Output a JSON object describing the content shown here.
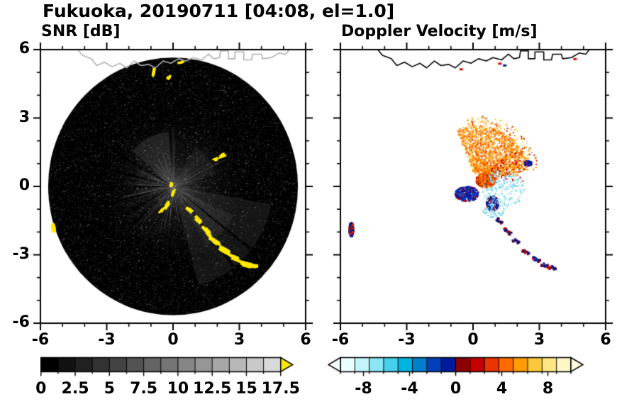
{
  "title": "Fukuoka, 20190711 [04:08, el=1.0]",
  "panels": {
    "snr": {
      "subtitle": "SNR [dB]",
      "x_tick_labels": [
        "-6",
        "-3",
        "0",
        "3",
        "6"
      ],
      "y_tick_labels": [
        "6",
        "3",
        "0",
        "-3",
        "-6"
      ],
      "x_tick_values": [
        -6,
        -3,
        0,
        3,
        6
      ],
      "y_tick_values": [
        6,
        3,
        0,
        -3,
        -6
      ]
    },
    "velocity": {
      "subtitle": "Doppler Velocity [m/s]",
      "x_tick_labels": [
        "-6",
        "-3",
        "0",
        "3",
        "6"
      ],
      "x_tick_values": [
        -6,
        -3,
        0,
        3,
        6
      ]
    }
  },
  "colorbars": {
    "snr": {
      "labels": [
        "0",
        "2.5",
        "5",
        "7.5",
        "10",
        "12.5",
        "15",
        "17.5"
      ],
      "label_values": [
        0,
        2.5,
        5,
        7.5,
        10,
        12.5,
        15,
        17.5
      ],
      "range": [
        0,
        17.5
      ],
      "n_segments": 14,
      "start_color": "#000000",
      "end_color": "#d9d9d9",
      "overflow_arrow_color": "#ffe800"
    },
    "velocity": {
      "labels": [
        "-8",
        "-4",
        "0",
        "4",
        "8"
      ],
      "label_values": [
        -8,
        -4,
        0,
        4,
        8
      ],
      "range": [
        -10,
        10
      ],
      "segment_colors": [
        "#eaffff",
        "#c2f4fa",
        "#8ae6f4",
        "#46d0ec",
        "#00b4e0",
        "#0080cc",
        "#0040bb",
        "#001a9e",
        "#8b0000",
        "#c40000",
        "#e93400",
        "#ff6a00",
        "#ff9c00",
        "#ffc83c",
        "#ffe680",
        "#fff6c8"
      ],
      "underflow_arrow_color": "#f4ffff",
      "overflow_arrow_color": "#fffbe0"
    }
  },
  "chart_data": {
    "type": "heatmap",
    "description": "Dual-panel radar PPI scan over Fukuoka, 2019-07-11 04:08, elevation 1.0 deg. Left panel: SNR [dB] 0-17.5 grayscale with yellow clutter arc. Right panel: Doppler velocity [m/s] -10..10, orange outflow fan and navy/red clutter arc. Axes -6..6 km.",
    "x_range": [
      -6,
      6
    ],
    "y_range": [
      -6,
      6
    ],
    "radar_center": [
      0,
      0
    ],
    "radar_radius": 5.65,
    "coastline": [
      [
        -4.35,
        6.05
      ],
      [
        -4.1,
        5.75
      ],
      [
        -3.7,
        5.6
      ],
      [
        -3.45,
        5.3
      ],
      [
        -3.1,
        5.45
      ],
      [
        -2.75,
        5.25
      ],
      [
        -2.4,
        5.4
      ],
      [
        -2.1,
        5.2
      ],
      [
        -1.75,
        5.5
      ],
      [
        -1.45,
        5.3
      ],
      [
        -1.1,
        5.35
      ],
      [
        -0.8,
        5.2
      ],
      [
        -0.45,
        5.5
      ],
      [
        -0.1,
        5.4
      ],
      [
        0.25,
        5.6
      ],
      [
        0.6,
        5.5
      ],
      [
        0.9,
        5.65
      ],
      [
        1.3,
        5.55
      ],
      [
        1.6,
        5.8
      ],
      [
        1.85,
        5.6
      ],
      [
        2.1,
        5.65
      ],
      [
        2.15,
        5.95
      ],
      [
        2.5,
        5.95
      ],
      [
        2.5,
        5.6
      ],
      [
        2.8,
        5.6
      ],
      [
        2.8,
        5.9
      ],
      [
        3.2,
        5.9
      ],
      [
        3.2,
        5.55
      ],
      [
        3.55,
        5.55
      ],
      [
        3.6,
        5.8
      ],
      [
        4.0,
        5.8
      ],
      [
        4.05,
        5.6
      ],
      [
        4.45,
        5.65
      ],
      [
        4.8,
        5.85
      ],
      [
        5.1,
        5.8
      ],
      [
        5.3,
        6.05
      ]
    ],
    "snr_panel": {
      "background_color": "#000000",
      "coastline_color": "#b0b0b0",
      "clutter_color": "#ffeb00",
      "haze_sectors": [
        [
          -75,
          -10,
          0.4,
          4.5,
          0.16
        ],
        [
          -60,
          -25,
          0.3,
          3.0,
          0.14
        ],
        [
          95,
          140,
          0.3,
          2.4,
          0.22
        ],
        [
          15,
          60,
          0.3,
          2.0,
          0.12
        ],
        [
          150,
          200,
          0.3,
          1.6,
          0.12
        ]
      ],
      "shadow_wedges": [
        [
          150,
          4
        ],
        [
          166,
          3
        ],
        [
          181,
          5
        ],
        [
          195,
          3
        ],
        [
          209,
          4
        ],
        [
          222,
          3
        ],
        [
          -38,
          2
        ],
        [
          -52,
          2
        ]
      ],
      "clutter_blobs": [
        [
          -0.07,
          0.12,
          0.22,
          0.1,
          75
        ],
        [
          0.02,
          -0.28,
          0.28,
          0.12,
          65
        ],
        [
          -0.28,
          -0.78,
          0.34,
          0.14,
          55
        ],
        [
          -0.5,
          -1.05,
          0.26,
          0.11,
          50
        ],
        [
          0.75,
          -1.02,
          0.3,
          0.13,
          -40
        ],
        [
          1.1,
          -1.45,
          0.36,
          0.15,
          -42
        ],
        [
          1.5,
          -1.9,
          0.4,
          0.16,
          -45
        ],
        [
          1.62,
          -2.12,
          0.3,
          0.12,
          -40
        ],
        [
          1.95,
          -2.42,
          0.46,
          0.18,
          -33
        ],
        [
          2.4,
          -2.85,
          0.5,
          0.2,
          -28
        ],
        [
          2.85,
          -3.18,
          0.5,
          0.2,
          -22
        ],
        [
          3.25,
          -3.42,
          0.46,
          0.18,
          -15
        ],
        [
          3.58,
          -3.52,
          0.34,
          0.15,
          -8
        ],
        [
          2.2,
          1.32,
          0.3,
          0.14,
          20
        ],
        [
          1.92,
          1.18,
          0.2,
          0.1,
          20
        ],
        [
          -0.9,
          5.0,
          0.3,
          0.12,
          80
        ],
        [
          -0.2,
          4.78,
          0.2,
          0.1,
          70
        ],
        [
          0.35,
          5.45,
          0.26,
          0.1,
          5
        ],
        [
          -5.45,
          -1.85,
          0.55,
          0.16,
          95
        ]
      ]
    },
    "velocity_panel": {
      "coastline_color": "#000000",
      "clusters": [
        {
          "name": "outflow-fan",
          "type": "fan",
          "cx": 0.15,
          "cy": 0.25,
          "a0": 12,
          "a1": 112,
          "r0": 0.35,
          "r1": 2.45,
          "pow": 0.75,
          "count": 1500,
          "size": 2,
          "colors": [
            "#ff9500",
            "#ff7000",
            "#ffb820",
            "#f04800",
            "#ffd45a",
            "#ff9500",
            "#e86000"
          ]
        },
        {
          "name": "fan-outer-specks",
          "type": "fan",
          "cx": 0.15,
          "cy": 0.25,
          "a0": 10,
          "a1": 100,
          "r0": 2.3,
          "r1": 2.9,
          "pow": 1,
          "count": 140,
          "size": 2,
          "colors": [
            "#ffc040",
            "#ff9500",
            "#cc2200",
            "#ffe080"
          ]
        },
        {
          "name": "fan-red-specks",
          "type": "fan",
          "cx": 0.15,
          "cy": 0.25,
          "a0": 0,
          "a1": 40,
          "r0": 0.8,
          "r1": 2.2,
          "pow": 1,
          "count": 80,
          "size": 2,
          "colors": [
            "#cc1100",
            "#a00000",
            "#ff5500"
          ]
        },
        {
          "name": "core-orange-knot",
          "type": "ellipse",
          "cx": 0.55,
          "cy": 0.3,
          "rx": 0.45,
          "ry": 0.33,
          "count": 600,
          "size": 2,
          "colors": [
            "#ff7300",
            "#e03000",
            "#b01800",
            "#ff9500",
            "#ff5500"
          ]
        },
        {
          "name": "blue-cluster",
          "type": "ellipse",
          "cx": -0.3,
          "cy": -0.3,
          "rx": 0.55,
          "ry": 0.33,
          "count": 420,
          "size": 2,
          "colors": [
            "#001c9e",
            "#001c9e",
            "#0030c8",
            "#0848d4",
            "#cc1100",
            "#00108a"
          ]
        },
        {
          "name": "navy-knot",
          "type": "ellipse",
          "cx": 0.85,
          "cy": -0.72,
          "rx": 0.28,
          "ry": 0.34,
          "count": 280,
          "size": 2,
          "colors": [
            "#001c9e",
            "#00108a",
            "#0030c8",
            "#cc1100"
          ]
        },
        {
          "name": "cyan-scatter",
          "type": "ellipse",
          "cx": 1.35,
          "cy": -0.1,
          "rx": 0.95,
          "ry": 0.85,
          "count": 230,
          "size": 2,
          "colors": [
            "#8fdcec",
            "#b2eaf4",
            "#5cc8e4",
            "#cdf2f8",
            "#74d2e8"
          ]
        },
        {
          "name": "cyan-scatter-low",
          "type": "ellipse",
          "cx": 0.9,
          "cy": -1.05,
          "rx": 0.5,
          "ry": 0.3,
          "count": 70,
          "size": 2,
          "colors": [
            "#8fdcec",
            "#5cc8e4",
            "#b2eaf4"
          ]
        },
        {
          "name": "right-orange-specks",
          "type": "ellipse",
          "cx": 1.6,
          "cy": 0.9,
          "rx": 0.6,
          "ry": 0.5,
          "count": 70,
          "size": 2,
          "colors": [
            "#ffb000",
            "#ff8000",
            "#ffd040",
            "#cc1100"
          ]
        },
        {
          "name": "west-rim-blob",
          "type": "ellipse",
          "cx": -5.55,
          "cy": -1.85,
          "rx": 0.1,
          "ry": 0.3,
          "count": 90,
          "size": 3,
          "colors": [
            "#cc1100",
            "#cc1100",
            "#e02200",
            "#001c9e",
            "#00108a"
          ]
        },
        {
          "name": "east-pair-blob",
          "type": "ellipse",
          "cx": 2.45,
          "cy": 1.05,
          "rx": 0.18,
          "ry": 0.1,
          "count": 50,
          "size": 3,
          "colors": [
            "#001c9e",
            "#00108a",
            "#0030c8",
            "#cc1100"
          ]
        }
      ],
      "arc_blobs": [
        [
          1.18,
          -1.5,
          -42
        ],
        [
          1.55,
          -1.95,
          -40
        ],
        [
          1.95,
          -2.42,
          -33
        ],
        [
          2.4,
          -2.87,
          -28
        ],
        [
          2.85,
          -3.2,
          -22
        ],
        [
          3.25,
          -3.45,
          -14
        ],
        [
          3.55,
          -3.55,
          -8
        ]
      ],
      "arc_navy": [
        "#001c9e",
        "#00108a"
      ],
      "arc_red": [
        "#cc0f00",
        "#8b0000"
      ],
      "coast_specks": [
        [
          -0.55,
          5.15,
          "#cc1100"
        ],
        [
          1.2,
          5.4,
          "#cc1100"
        ],
        [
          1.42,
          5.32,
          "#001c9e"
        ],
        [
          4.6,
          5.6,
          "#cc1100"
        ]
      ]
    }
  }
}
